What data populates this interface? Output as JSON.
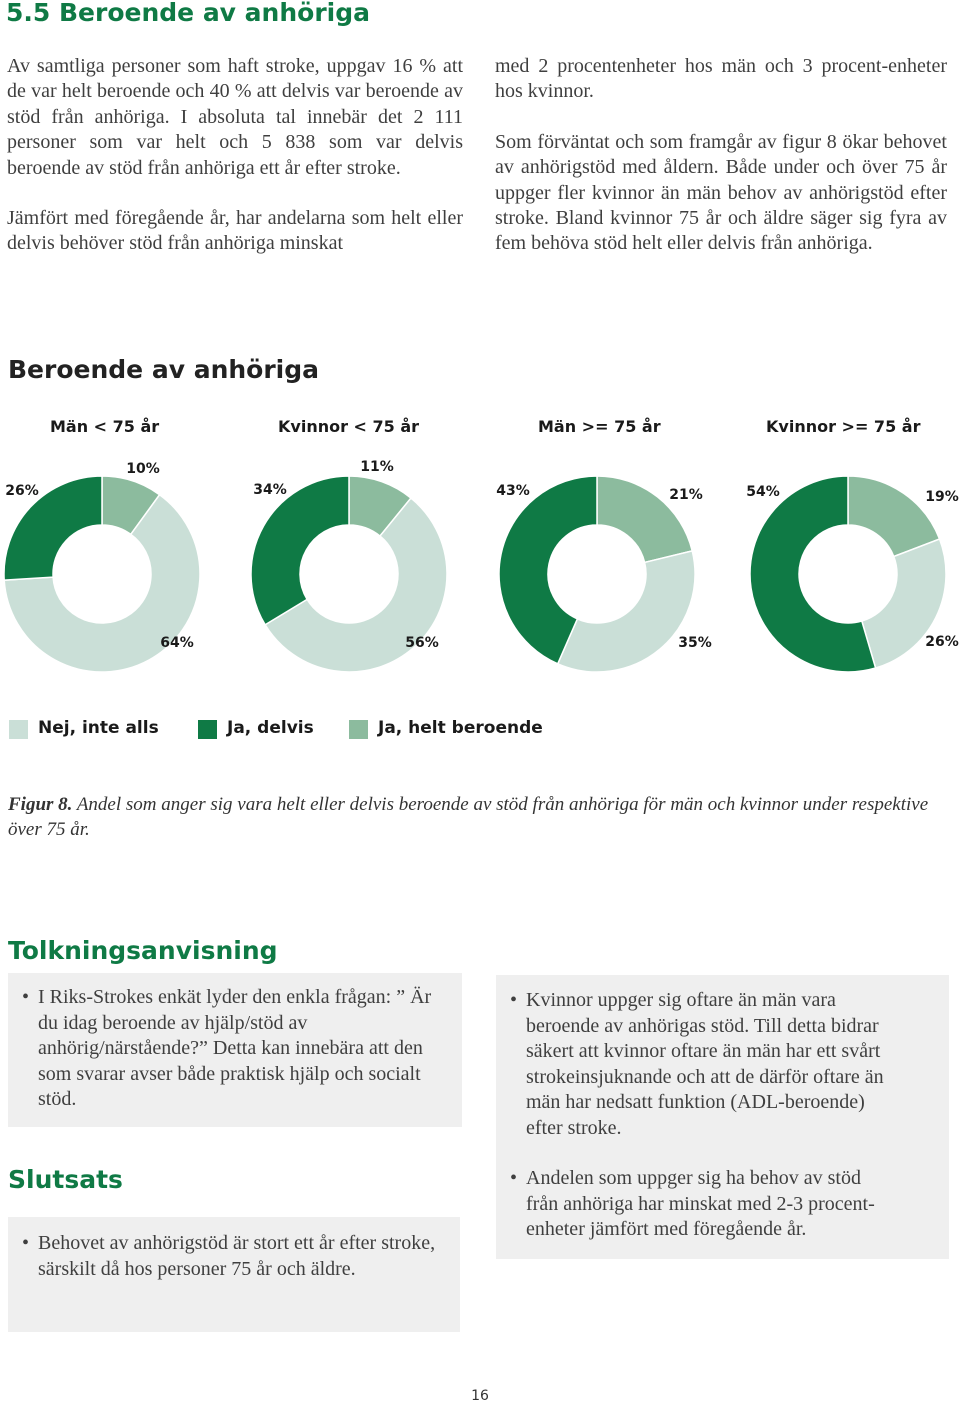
{
  "section": {
    "title": "5.5  Beroende av anhöriga",
    "col1_p1": "Av samtliga personer som haft stroke, uppgav 16 % att de var helt beroende och 40 % att delvis var beroende av stöd från anhöriga. I absoluta tal innebär det 2 111 personer som var helt och 5 838 som var delvis beroende av stöd från anhöriga ett år efter stroke.",
    "col1_p2": "Jämfört med föregående år, har andelarna som helt eller delvis behöver stöd från anhöriga minskat",
    "col2_p1": "med 2 procentenheter hos män och 3 procent-enheter hos kvinnor.",
    "col2_p2": "Som förväntat och som framgår av figur 8 ökar behovet av anhörigstöd med åldern. Både under och över 75 år uppger fler kvinnor än män behov av anhörigstöd efter stroke. Bland kvinnor 75 år och äldre säger sig fyra av fem behöva stöd helt eller delvis från anhöriga."
  },
  "figure": {
    "title": "Beroende av anhöriga",
    "legend": [
      "Nej, inte alls",
      "Ja, delvis",
      "Ja, helt beroende"
    ],
    "caption_label": "Figur 8.",
    "caption_text": " Andel som anger sig vara helt eller delvis beroende av stöd från anhöriga för män och kvinnor under respektive över 75 år."
  },
  "chart_data": {
    "type": "pie",
    "title": "Beroende av anhöriga",
    "categories": [
      "Nej, inte alls",
      "Ja, delvis",
      "Ja, helt beroende"
    ],
    "colors": [
      "#cadfd7",
      "#0f7a45",
      "#8cbb9e"
    ],
    "panels": [
      {
        "name": "Män < 75 år",
        "values": [
          64,
          26,
          10
        ],
        "labels": [
          "64%",
          "26%",
          "10%"
        ]
      },
      {
        "name": "Kvinnor < 75 år",
        "values": [
          56,
          34,
          11
        ],
        "labels": [
          "56%",
          "34%",
          "11%"
        ]
      },
      {
        "name": "Män >= 75 år",
        "values": [
          35,
          43,
          21
        ],
        "labels": [
          "35%",
          "43%",
          "21%"
        ]
      },
      {
        "name": "Kvinnor >= 75 år",
        "values": [
          26,
          54,
          19
        ],
        "labels": [
          "26%",
          "54%",
          "19%"
        ]
      }
    ]
  },
  "interpretation": {
    "title": "Tolkningsanvisning",
    "bullet": "•",
    "left_item": "I Riks-Strokes enkät lyder den enkla frågan: ” Är du idag beroende av hjälp/stöd av anhörig/närstående?” Detta kan innebära att den som svarar avser både praktisk hjälp och socialt stöd.",
    "right_item1": "Kvinnor uppger sig oftare än män vara beroende av anhörigas stöd. Till detta bidrar säkert att kvinnor oftare än män har ett svårt strokeinsjuknande och att de därför oftare än män har nedsatt funktion (ADL-beroende) efter stroke.",
    "right_item2": "Andelen som uppger sig ha behov av stöd från anhöriga har minskat med 2-3 procent-enheter jämfört med föregående år."
  },
  "conclusion": {
    "title": "Slutsats",
    "item": "Behovet av anhörigstöd är stort ett år efter stroke, särskilt då hos personer 75 år och äldre."
  },
  "page_number": "16"
}
